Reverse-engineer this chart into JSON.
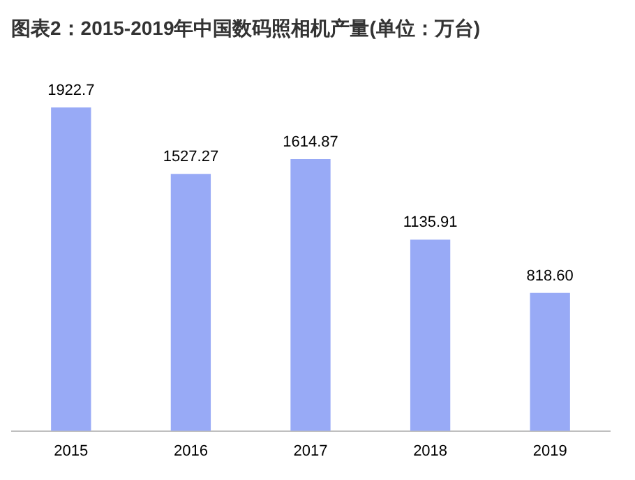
{
  "chart_data": {
    "type": "bar",
    "title": "图表2：2015-2019年中国数码照相机产量(单位：万台)",
    "categories": [
      "2015",
      "2016",
      "2017",
      "2018",
      "2019"
    ],
    "series": [
      {
        "color": "#98aaf6",
        "values": [
          1922.7,
          1527.27,
          1614.87,
          1135.91,
          818.6
        ],
        "value_labels": [
          "1922.7",
          "1527.27",
          "1614.87",
          "1135.91",
          "818.60"
        ]
      }
    ],
    "tick_labels": "x",
    "grid": false,
    "legend": false
  }
}
